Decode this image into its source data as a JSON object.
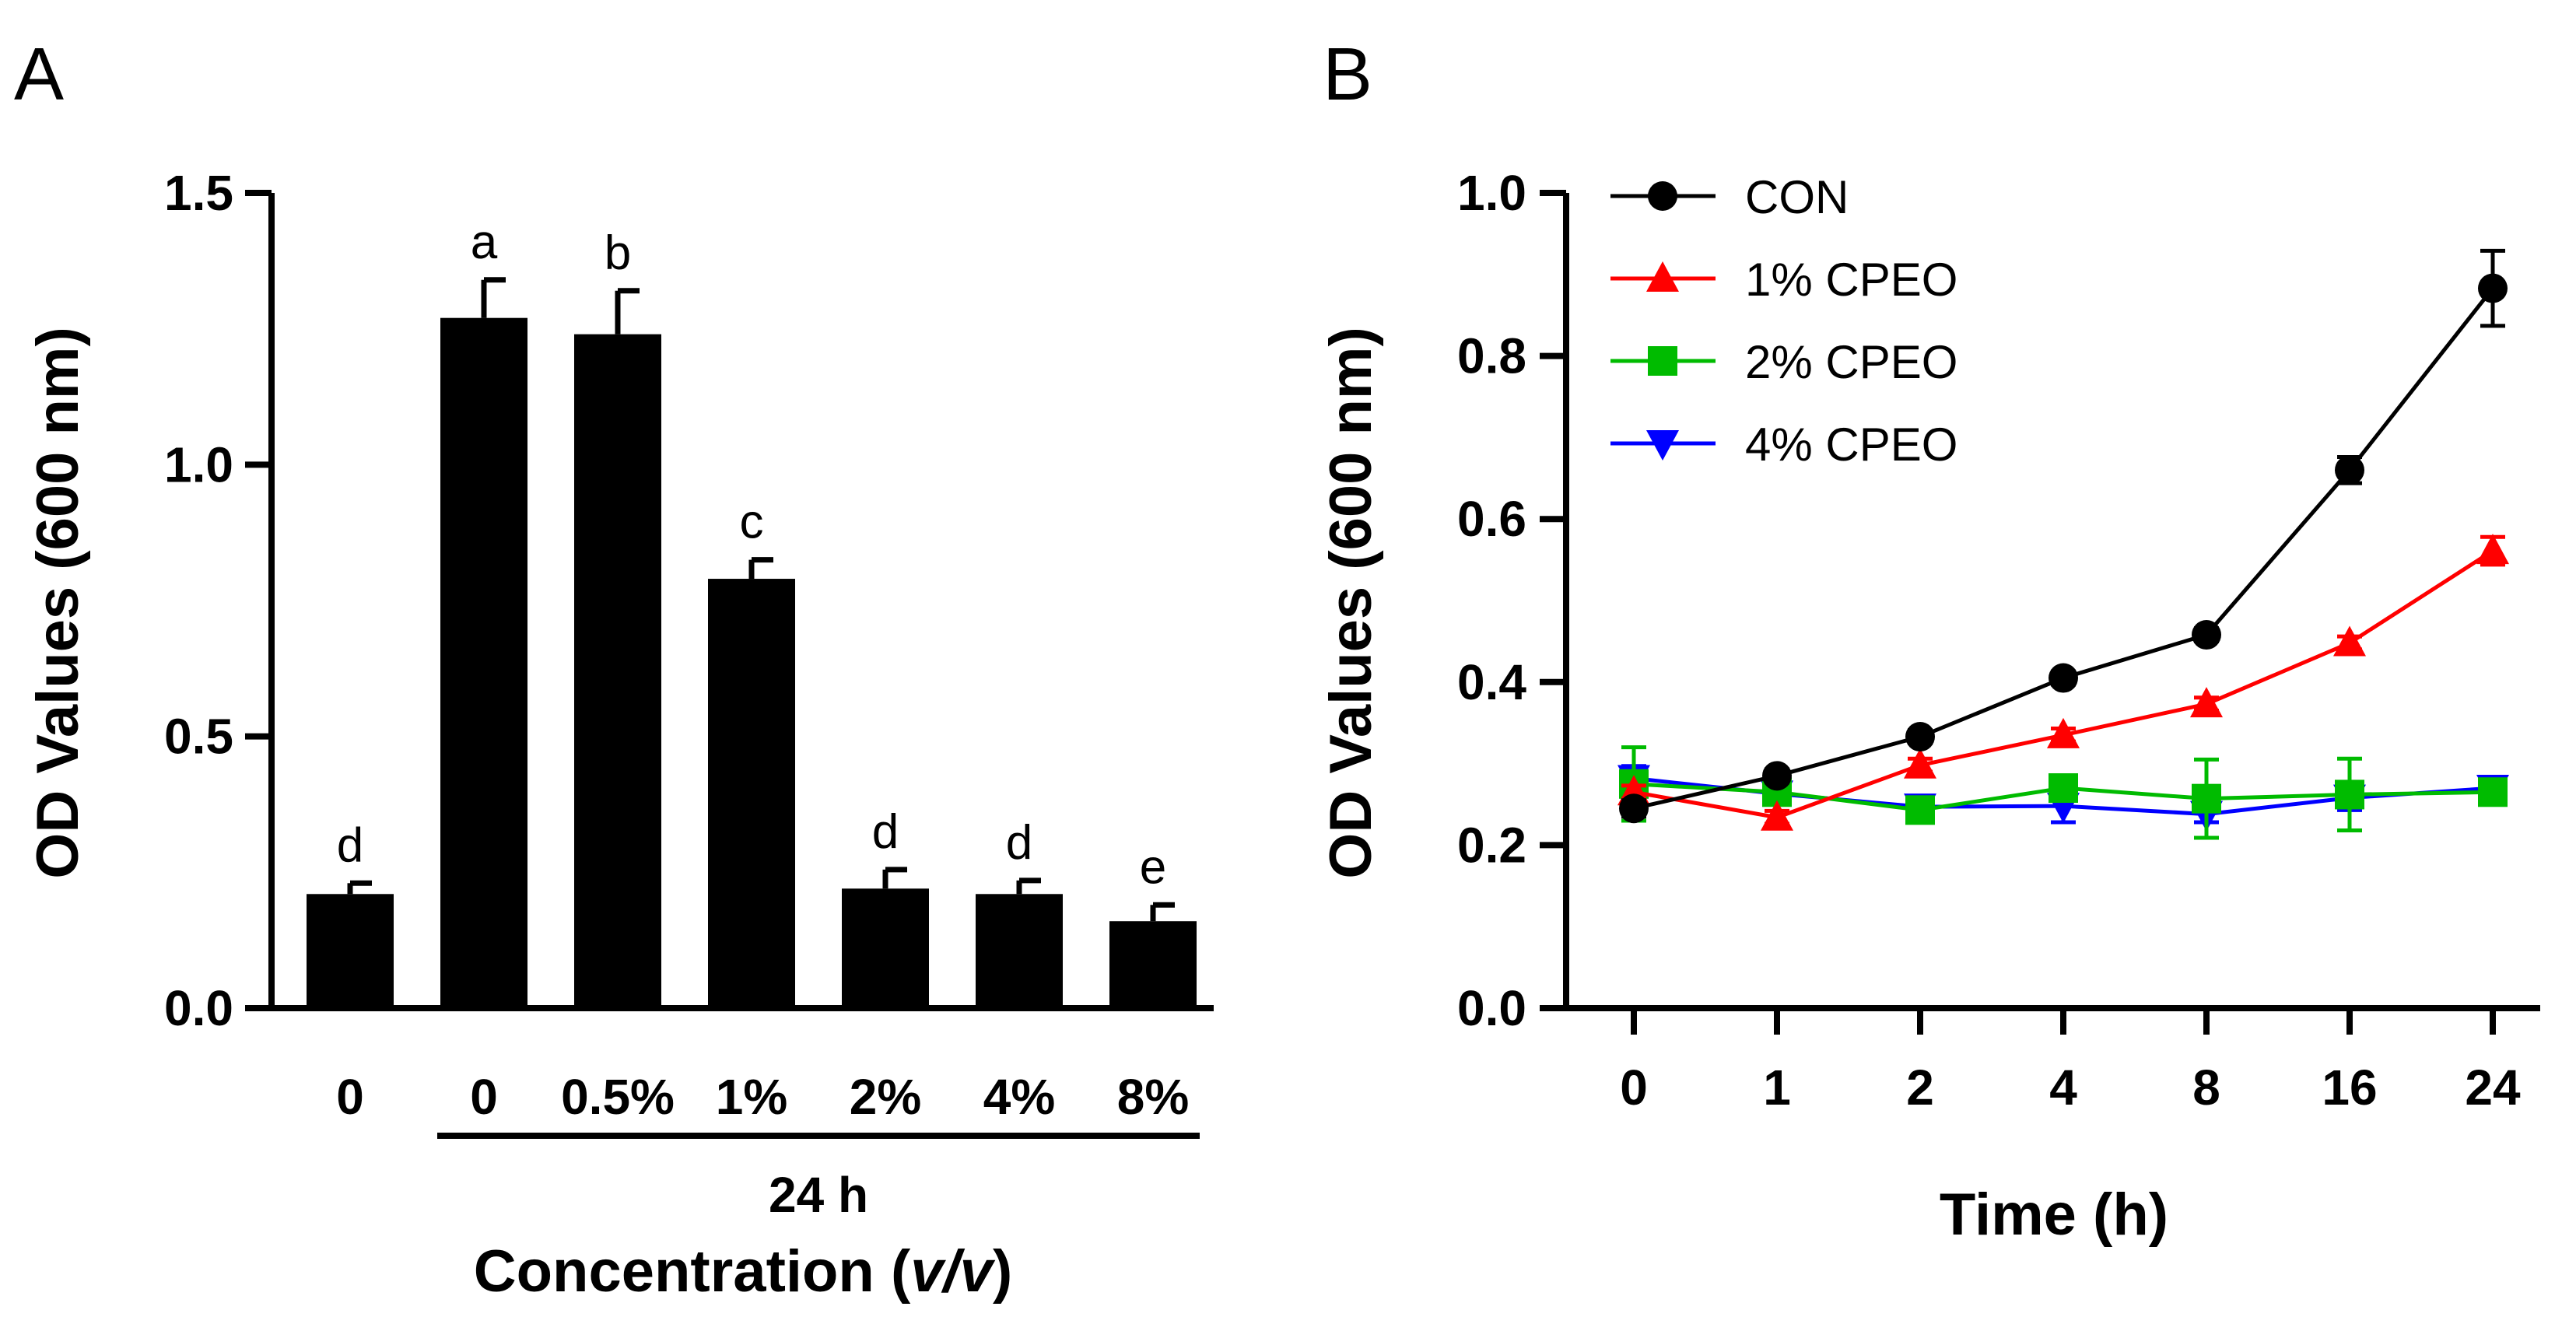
{
  "chart_data": [
    {
      "panel": "A",
      "type": "bar",
      "ylabel": "OD Values (600 nm)",
      "ylim": [
        0,
        1.5
      ],
      "yticks": [
        "0.0",
        "0.5",
        "1.0",
        "1.5"
      ],
      "ytick_values": [
        0,
        0.5,
        1.0,
        1.5
      ],
      "categories": [
        "0",
        "0",
        "0.5%",
        "1%",
        "2%",
        "4%",
        "8%"
      ],
      "values": [
        0.21,
        1.27,
        1.24,
        0.79,
        0.22,
        0.21,
        0.16
      ],
      "errors": [
        0.02,
        0.07,
        0.08,
        0.035,
        0.035,
        0.025,
        0.03
      ],
      "significance": [
        "d",
        "a",
        "b",
        "c",
        "d",
        "d",
        "e"
      ],
      "group_label": "24 h",
      "group_span": [
        1,
        6
      ],
      "xlabel_main": "Concentration (",
      "xlabel_italic": "v/v",
      "xlabel_end": ")",
      "bar_color": "#000000"
    },
    {
      "panel": "B",
      "type": "line",
      "ylabel": "OD Values (600 nm)",
      "xlabel": "Time (h)",
      "ylim": [
        0,
        1.0
      ],
      "yticks": [
        "0.0",
        "0.2",
        "0.4",
        "0.6",
        "0.8",
        "1.0"
      ],
      "ytick_values": [
        0,
        0.2,
        0.4,
        0.6,
        0.8,
        1.0
      ],
      "categories": [
        "0",
        "1",
        "2",
        "4",
        "8",
        "16",
        "24"
      ],
      "series": [
        {
          "name": "CON",
          "color": "#000000",
          "marker": "circle",
          "values": [
            0.245,
            0.285,
            0.333,
            0.405,
            0.458,
            0.66,
            0.883
          ],
          "errors": [
            0.01,
            0.008,
            0.008,
            0.008,
            0.008,
            0.016,
            0.046
          ]
        },
        {
          "name": "1% CPEO",
          "color": "#ff0000",
          "marker": "triangle-up",
          "values": [
            0.265,
            0.234,
            0.298,
            0.335,
            0.373,
            0.448,
            0.561
          ],
          "errors": [
            0.008,
            0.008,
            0.008,
            0.008,
            0.008,
            0.008,
            0.017
          ]
        },
        {
          "name": "2% CPEO",
          "color": "#00bb00",
          "marker": "square",
          "values": [
            0.275,
            0.265,
            0.243,
            0.27,
            0.257,
            0.262,
            0.265
          ],
          "errors": [
            0.045,
            0.008,
            0.008,
            0.012,
            0.048,
            0.044,
            0.008
          ]
        },
        {
          "name": "4% CPEO",
          "color": "#0000ff",
          "marker": "triangle-down",
          "values": [
            0.282,
            0.263,
            0.247,
            0.248,
            0.238,
            0.258,
            0.27
          ],
          "errors": [
            0.015,
            0.008,
            0.008,
            0.02,
            0.01,
            0.015,
            0.008
          ]
        }
      ]
    }
  ]
}
